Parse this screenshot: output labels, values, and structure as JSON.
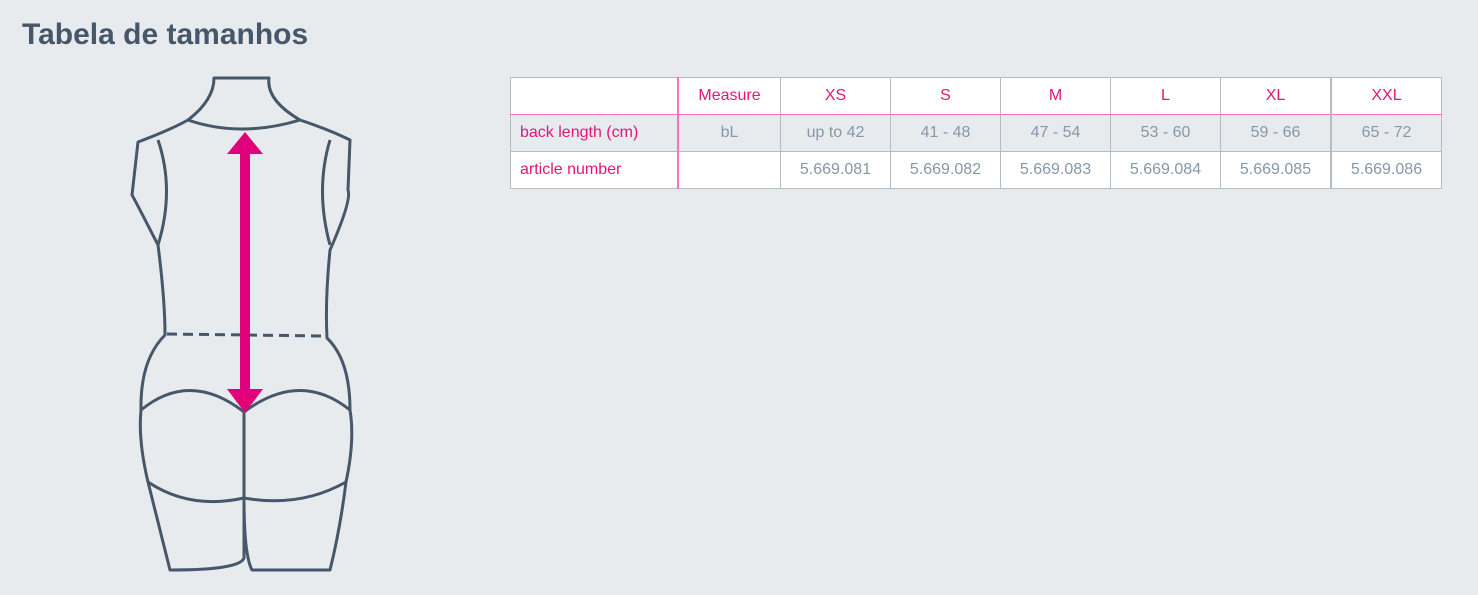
{
  "title": "Tabela de tamanhos",
  "table": {
    "headers": [
      "",
      "Measure",
      "XS",
      "S",
      "M",
      "L",
      "XL",
      "XXL"
    ],
    "rows": [
      {
        "label": "back length (cm)",
        "measure": "bL",
        "values": [
          "up to 42",
          "41 - 48",
          "47 - 54",
          "53 - 60",
          "59 - 66",
          "65 - 72"
        ]
      },
      {
        "label": "article number",
        "measure": "",
        "values": [
          "5.669.081",
          "5.669.082",
          "5.669.083",
          "5.669.084",
          "5.669.085",
          "5.669.086"
        ]
      }
    ]
  },
  "colors": {
    "accent": "#e0167a",
    "outline": "#46576a"
  }
}
